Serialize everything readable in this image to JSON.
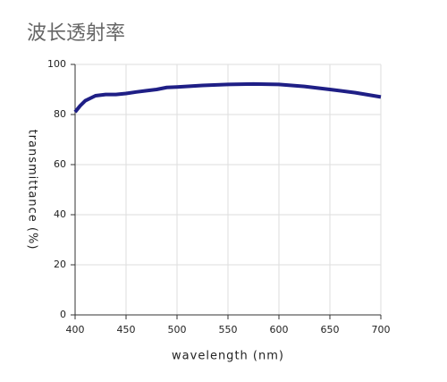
{
  "chart_data": {
    "type": "line",
    "title": "波长透射率",
    "x_label": "wavelength (nm)",
    "y_label": "transmittance (%)",
    "x": [
      400,
      405,
      410,
      420,
      430,
      440,
      450,
      460,
      470,
      480,
      490,
      500,
      525,
      550,
      575,
      600,
      625,
      650,
      675,
      700
    ],
    "series": [
      {
        "name": "transmittance",
        "color": "#1f1f86",
        "values": [
          81,
          83.5,
          85.5,
          87.5,
          88,
          88,
          88.4,
          89,
          89.5,
          90,
          90.8,
          91,
          91.6,
          92,
          92.2,
          92,
          91.2,
          90,
          88.7,
          87
        ]
      }
    ],
    "xlim": [
      400,
      700
    ],
    "xticks": [
      400,
      450,
      500,
      550,
      600,
      650,
      700
    ],
    "ylim": [
      0,
      100
    ],
    "yticks": [
      0,
      20,
      40,
      60,
      80,
      100
    ],
    "grid": true
  }
}
